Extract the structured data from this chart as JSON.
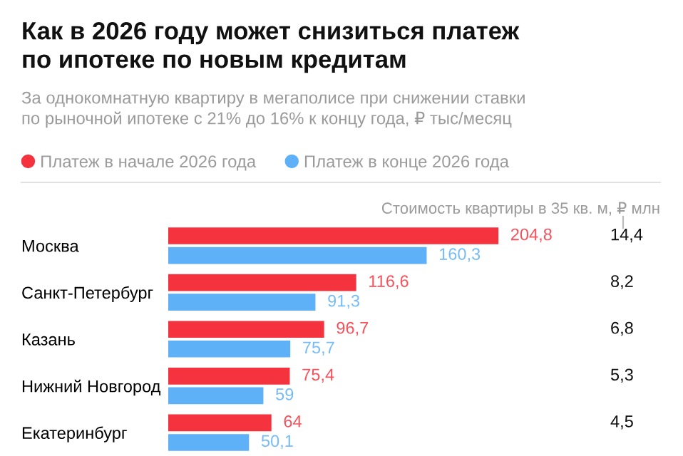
{
  "chart_data": {
    "type": "bar",
    "orientation": "horizontal",
    "title": "Как в 2026 году может снизиться платеж\nпо ипотеке по новым кредитам",
    "subtitle": "За однокомнатную квартиру в мегаполисе при снижении ставки\nпо рыночной ипотеке с 21% до 16% к концу года, ₽ тыс/месяц",
    "categories": [
      "Москва",
      "Санкт-Петербург",
      "Казань",
      "Нижний Новгород",
      "Екатеринбург"
    ],
    "series": [
      {
        "name": "Платеж в начале 2026 года",
        "color": "#f5333f",
        "values": [
          204.8,
          116.6,
          96.7,
          75.4,
          64
        ],
        "value_labels": [
          "204,8",
          "116,6",
          "96,7",
          "75,4",
          "64"
        ]
      },
      {
        "name": "Платеж в конце 2026 года",
        "color": "#5eb0f7",
        "values": [
          160.3,
          91.3,
          75.7,
          59,
          50.1
        ],
        "value_labels": [
          "160,3",
          "91,3",
          "75,7",
          "59",
          "50,1"
        ]
      }
    ],
    "annotations": [
      "Стоимость квартиры в 35 кв. м, ₽ млн",
      "14,4",
      "8,2",
      "6,8",
      "5,3",
      "4,5"
    ],
    "legend": "top left",
    "grid": false
  }
}
